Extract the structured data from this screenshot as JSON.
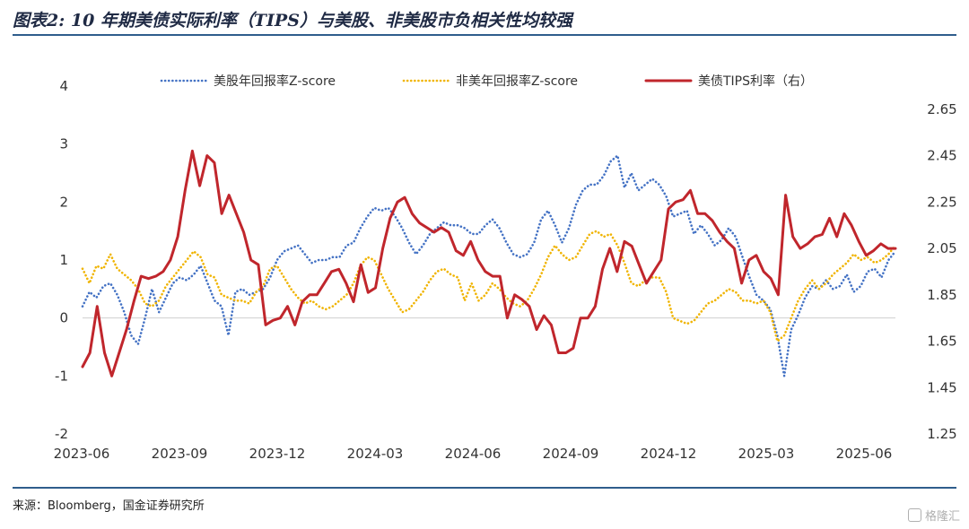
{
  "header": {
    "title": "图表2: 10 年期美债实际利率（TIPS）与美股、非美股市负相关性均较强"
  },
  "footer": {
    "source": "来源：Bloomberg，国金证券研究所",
    "watermark": "格隆汇"
  },
  "chart_data": {
    "type": "line",
    "x_ticks": [
      "2023-06",
      "2023-09",
      "2023-12",
      "2024-03",
      "2024-06",
      "2024-09",
      "2024-12",
      "2025-03",
      "2025-06"
    ],
    "y_left": {
      "ylim": [
        -2,
        4
      ],
      "ticks": [
        "-2",
        "-1",
        "0",
        "1",
        "2",
        "3",
        "4"
      ]
    },
    "y_right": {
      "ylim": [
        1.25,
        2.75
      ],
      "ticks": [
        "1.25",
        "1.45",
        "1.65",
        "1.85",
        "2.05",
        "2.25",
        "2.45",
        "2.65"
      ]
    },
    "series": [
      {
        "name": "美股年回报率Z-score",
        "axis": "left",
        "color": "#4472c4",
        "style": "dotted",
        "values": [
          0.2,
          0.45,
          0.35,
          0.55,
          0.6,
          0.4,
          0.1,
          -0.3,
          -0.45,
          0.0,
          0.5,
          0.1,
          0.35,
          0.6,
          0.7,
          0.65,
          0.75,
          0.9,
          0.6,
          0.3,
          0.2,
          -0.3,
          0.45,
          0.5,
          0.4,
          0.45,
          0.5,
          0.7,
          1.0,
          1.15,
          1.2,
          1.25,
          1.1,
          0.95,
          1.0,
          1.0,
          1.05,
          1.05,
          1.25,
          1.3,
          1.55,
          1.75,
          1.9,
          1.85,
          1.9,
          1.75,
          1.55,
          1.3,
          1.1,
          1.25,
          1.45,
          1.55,
          1.65,
          1.6,
          1.6,
          1.55,
          1.45,
          1.45,
          1.6,
          1.7,
          1.55,
          1.3,
          1.1,
          1.05,
          1.1,
          1.3,
          1.7,
          1.85,
          1.6,
          1.3,
          1.55,
          1.95,
          2.2,
          2.3,
          2.3,
          2.45,
          2.7,
          2.8,
          2.25,
          2.5,
          2.2,
          2.3,
          2.4,
          2.3,
          2.1,
          1.75,
          1.8,
          1.85,
          1.45,
          1.6,
          1.45,
          1.25,
          1.35,
          1.55,
          1.4,
          1.05,
          0.7,
          0.4,
          0.3,
          0.15,
          -0.3,
          -1.0,
          -0.2,
          0.05,
          0.35,
          0.55,
          0.5,
          0.65,
          0.5,
          0.55,
          0.75,
          0.45,
          0.55,
          0.8,
          0.85,
          0.7,
          1.0,
          1.15
        ]
      },
      {
        "name": "非美年回报率Z-score",
        "axis": "left",
        "color": "#f0b400",
        "style": "dotted",
        "values": [
          0.85,
          0.6,
          0.9,
          0.85,
          1.1,
          0.85,
          0.75,
          0.65,
          0.5,
          0.25,
          0.2,
          0.3,
          0.55,
          0.7,
          0.85,
          1.0,
          1.15,
          1.05,
          0.75,
          0.7,
          0.4,
          0.35,
          0.3,
          0.3,
          0.25,
          0.45,
          0.55,
          0.85,
          0.9,
          0.7,
          0.5,
          0.35,
          0.25,
          0.3,
          0.2,
          0.15,
          0.2,
          0.3,
          0.4,
          0.6,
          0.9,
          1.05,
          1.0,
          0.75,
          0.5,
          0.3,
          0.1,
          0.15,
          0.3,
          0.45,
          0.65,
          0.8,
          0.85,
          0.75,
          0.7,
          0.3,
          0.6,
          0.3,
          0.4,
          0.6,
          0.5,
          0.35,
          0.25,
          0.2,
          0.3,
          0.5,
          0.75,
          1.05,
          1.25,
          1.1,
          1.0,
          1.05,
          1.25,
          1.45,
          1.5,
          1.4,
          1.45,
          1.25,
          0.95,
          0.6,
          0.55,
          0.65,
          0.7,
          0.7,
          0.45,
          0.0,
          -0.05,
          -0.1,
          -0.05,
          0.1,
          0.25,
          0.3,
          0.4,
          0.5,
          0.45,
          0.3,
          0.3,
          0.25,
          0.3,
          0.1,
          -0.4,
          -0.3,
          0.0,
          0.3,
          0.5,
          0.65,
          0.5,
          0.6,
          0.75,
          0.85,
          0.95,
          1.1,
          1.0,
          1.05,
          0.95,
          1.0,
          1.1,
          1.25
        ]
      },
      {
        "name": "美债TIPS利率（右）",
        "axis": "right",
        "color": "#c0262c",
        "style": "solid",
        "values": [
          1.54,
          1.6,
          1.8,
          1.6,
          1.5,
          1.6,
          1.7,
          1.82,
          1.93,
          1.92,
          1.93,
          1.95,
          2.0,
          2.1,
          2.3,
          2.47,
          2.32,
          2.45,
          2.42,
          2.2,
          2.28,
          2.2,
          2.12,
          2.0,
          1.98,
          1.72,
          1.74,
          1.75,
          1.8,
          1.72,
          1.82,
          1.85,
          1.85,
          1.9,
          1.95,
          1.96,
          1.9,
          1.82,
          1.98,
          1.86,
          1.88,
          2.05,
          2.18,
          2.25,
          2.27,
          2.2,
          2.16,
          2.14,
          2.12,
          2.14,
          2.12,
          2.04,
          2.02,
          2.08,
          2.0,
          1.95,
          1.93,
          1.93,
          1.75,
          1.85,
          1.83,
          1.8,
          1.7,
          1.76,
          1.72,
          1.6,
          1.6,
          1.62,
          1.75,
          1.75,
          1.8,
          1.96,
          2.05,
          1.95,
          2.08,
          2.06,
          1.98,
          1.9,
          1.95,
          2.0,
          2.22,
          2.25,
          2.26,
          2.3,
          2.2,
          2.2,
          2.17,
          2.12,
          2.08,
          2.05,
          1.9,
          2.0,
          2.02,
          1.95,
          1.92,
          1.85,
          2.28,
          2.1,
          2.05,
          2.07,
          2.1,
          2.11,
          2.18,
          2.1,
          2.2,
          2.15,
          2.08,
          2.02,
          2.04,
          2.07,
          2.05,
          2.05
        ]
      }
    ],
    "legend": "top",
    "grid": false
  }
}
